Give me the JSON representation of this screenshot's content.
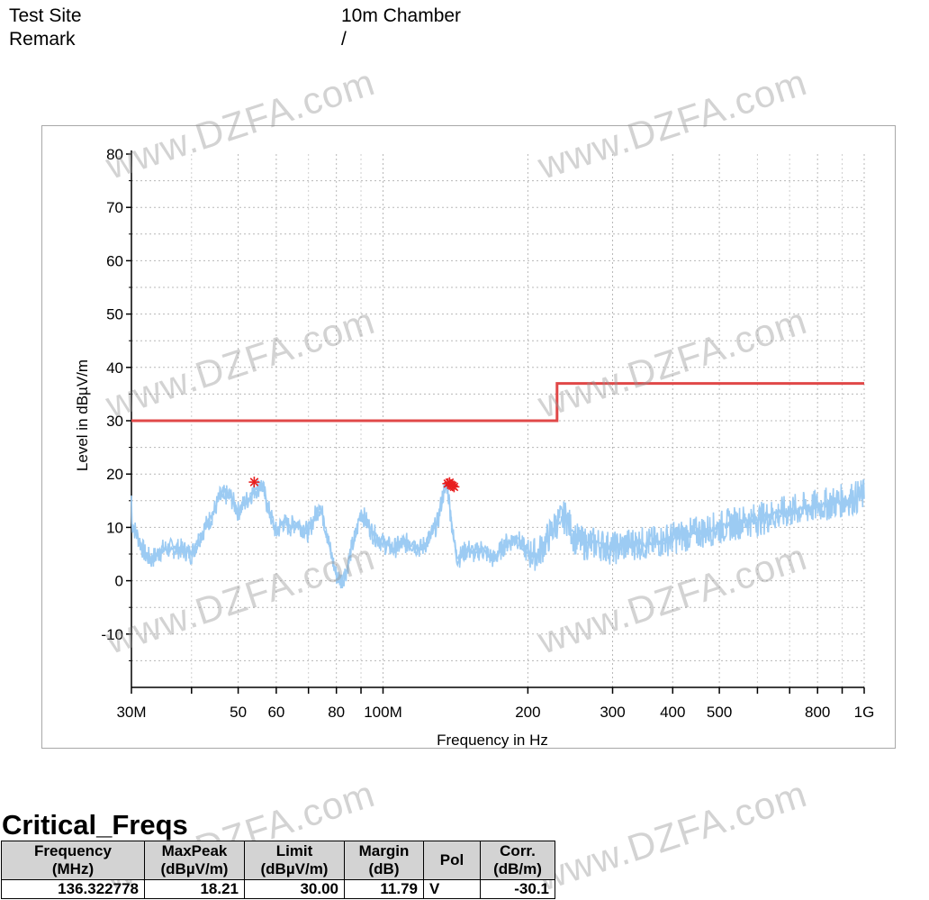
{
  "header": {
    "rows": [
      {
        "label": "Test Site",
        "value": "10m Chamber"
      },
      {
        "label": "Remark",
        "value": "/"
      }
    ]
  },
  "watermark": "www.DZFA.com",
  "chart_data": {
    "type": "line",
    "xlabel": "Frequency in Hz",
    "ylabel": "Level in dBµV/m",
    "x_scale": "log",
    "xlim": [
      30,
      1000
    ],
    "ylim": [
      -20,
      80
    ],
    "yticks": [
      80,
      70,
      60,
      50,
      40,
      30,
      20,
      10,
      0,
      -10
    ],
    "yticks_labels": [
      "80",
      "70",
      "60",
      "50",
      "40",
      "30",
      "20",
      "10",
      "0",
      "-10"
    ],
    "xticks": [
      {
        "value": 30,
        "label": "30M"
      },
      {
        "value": 50,
        "label": "50"
      },
      {
        "value": 60,
        "label": "60"
      },
      {
        "value": 80,
        "label": "80"
      },
      {
        "value": 100,
        "label": "100M"
      },
      {
        "value": 200,
        "label": "200"
      },
      {
        "value": 300,
        "label": "300"
      },
      {
        "value": 400,
        "label": "400"
      },
      {
        "value": 500,
        "label": "500"
      },
      {
        "value": 800,
        "label": "800"
      },
      {
        "value": 1000,
        "label": "1G"
      }
    ],
    "grid": true,
    "limit_line": {
      "color": "#e04848",
      "points": [
        [
          30,
          30
        ],
        [
          230,
          30
        ],
        [
          230,
          37
        ],
        [
          1000,
          37
        ]
      ]
    },
    "measurement": {
      "color": "#9ccbf3",
      "x": [
        30,
        31,
        32,
        33,
        35,
        38,
        40,
        42,
        44,
        46,
        48,
        50,
        52,
        54,
        56,
        58,
        60,
        62,
        64,
        66,
        68,
        70,
        72,
        74,
        76,
        78,
        80,
        82,
        84,
        86,
        88,
        90,
        95,
        100,
        105,
        110,
        115,
        120,
        125,
        130,
        133,
        136,
        138,
        140,
        143,
        146,
        150,
        155,
        160,
        170,
        180,
        190,
        200,
        210,
        220,
        230,
        240,
        250,
        260,
        270,
        280,
        300,
        330,
        360,
        400,
        450,
        500,
        550,
        600,
        700,
        800,
        900,
        1000
      ],
      "y": [
        11,
        8,
        5,
        4,
        6,
        6,
        5,
        9,
        12,
        16,
        16,
        13,
        15,
        17,
        18,
        13,
        9,
        11,
        10,
        11,
        10,
        9,
        12,
        14,
        10,
        5,
        1,
        0,
        2,
        6,
        9,
        13,
        9,
        7,
        6,
        7,
        7,
        6,
        8,
        11,
        16,
        18,
        13,
        8,
        4,
        5,
        6,
        5,
        6,
        4,
        7,
        8,
        5,
        5,
        8,
        11,
        12,
        8,
        7,
        7,
        7,
        6,
        7,
        7,
        8,
        9,
        10,
        11,
        11.5,
        13,
        14,
        15,
        16
      ]
    },
    "peak_markers": {
      "color": "#e81e1e",
      "points": [
        [
          54.0,
          18.5
        ],
        [
          136.3,
          18.21
        ],
        [
          137.5,
          18.4
        ],
        [
          138.5,
          18.0
        ],
        [
          139.5,
          17.8
        ],
        [
          140.5,
          17.6
        ]
      ]
    }
  },
  "critical_freqs": {
    "title": "Critical_Freqs",
    "columns": [
      {
        "l1": "Frequency",
        "l2": "(MHz)"
      },
      {
        "l1": "MaxPeak",
        "l2": "(dBµV/m)"
      },
      {
        "l1": "Limit",
        "l2": "(dBµV/m)"
      },
      {
        "l1": "Margin",
        "l2": "(dB)"
      },
      {
        "l1": "Pol",
        "l2": ""
      },
      {
        "l1": "Corr.",
        "l2": "(dB/m)"
      }
    ],
    "rows": [
      {
        "frequency": "136.322778",
        "maxpeak": "18.21",
        "limit": "30.00",
        "margin": "11.79",
        "pol": "V",
        "corr": "-30.1"
      }
    ]
  }
}
